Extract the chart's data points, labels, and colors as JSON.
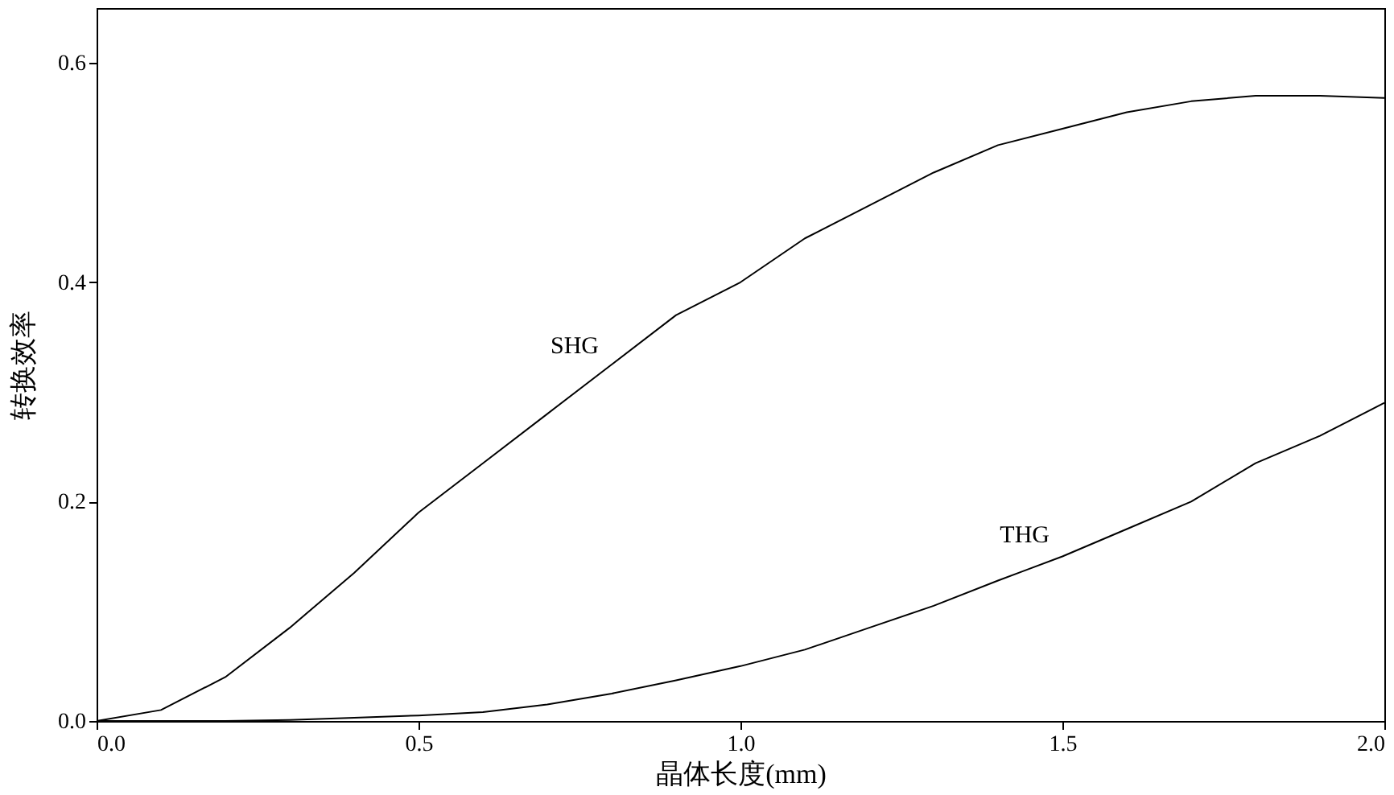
{
  "chart_data": {
    "type": "line",
    "xlabel": "晶体长度(mm)",
    "ylabel": "转换效率",
    "x": [
      0,
      0.1,
      0.2,
      0.3,
      0.4,
      0.5,
      0.6,
      0.7,
      0.8,
      0.9,
      1.0,
      1.1,
      1.2,
      1.3,
      1.4,
      1.5,
      1.6,
      1.7,
      1.8,
      1.9,
      2.0
    ],
    "series": [
      {
        "name": "SHG",
        "color": "#000000",
        "values": [
          0,
          0.01,
          0.04,
          0.085,
          0.135,
          0.19,
          0.235,
          0.28,
          0.325,
          0.37,
          0.4,
          0.44,
          0.47,
          0.5,
          0.525,
          0.54,
          0.555,
          0.565,
          0.57,
          0.57,
          0.568
        ]
      },
      {
        "name": "THG",
        "color": "#000000",
        "values": [
          0,
          0,
          0,
          0.001,
          0.003,
          0.005,
          0.008,
          0.015,
          0.025,
          0.037,
          0.05,
          0.065,
          0.085,
          0.105,
          0.128,
          0.15,
          0.175,
          0.2,
          0.235,
          0.26,
          0.29
        ]
      }
    ],
    "xlim": [
      0,
      2.0
    ],
    "ylim": [
      0,
      0.65
    ],
    "xticks": [
      {
        "value": 0,
        "label": "0.0"
      },
      0.5,
      {
        "value": 1,
        "label": "1.0"
      },
      1.5,
      {
        "value": 2,
        "label": "2.0"
      }
    ],
    "yticks": [
      {
        "value": 0,
        "label": "0.0"
      },
      0.2,
      0.4,
      0.6
    ],
    "grid": false,
    "legend": false,
    "marker": "none",
    "line_style": "solid"
  }
}
